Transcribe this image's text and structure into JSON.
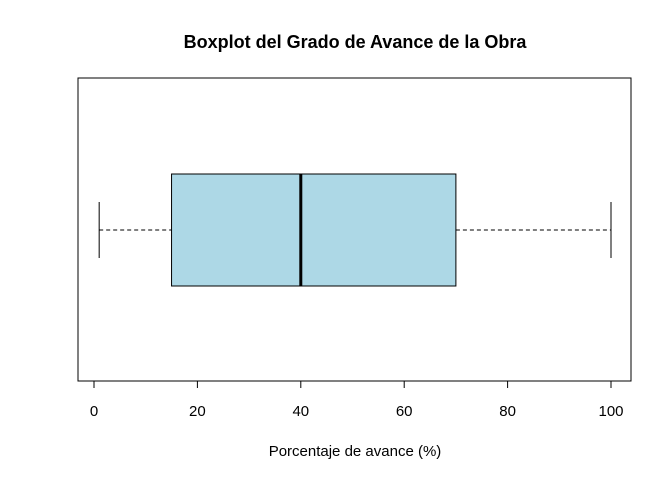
{
  "chart_data": {
    "type": "boxplot",
    "title": "Boxplot del Grado de Avance de la Obra",
    "xlabel": "Porcentaje de avance (%)",
    "ylabel": "",
    "orientation": "horizontal",
    "xlim": [
      0,
      100
    ],
    "x_ticks": [
      0,
      20,
      40,
      60,
      80,
      100
    ],
    "x_tick_labels": [
      "0",
      "20",
      "40",
      "60",
      "80",
      "100"
    ],
    "box": {
      "min": 1,
      "q1": 15,
      "median": 40,
      "q3": 70,
      "max": 100
    },
    "colors": {
      "box_fill": "#add8e6",
      "stroke": "#000000"
    },
    "grid": false,
    "legend": "none"
  }
}
